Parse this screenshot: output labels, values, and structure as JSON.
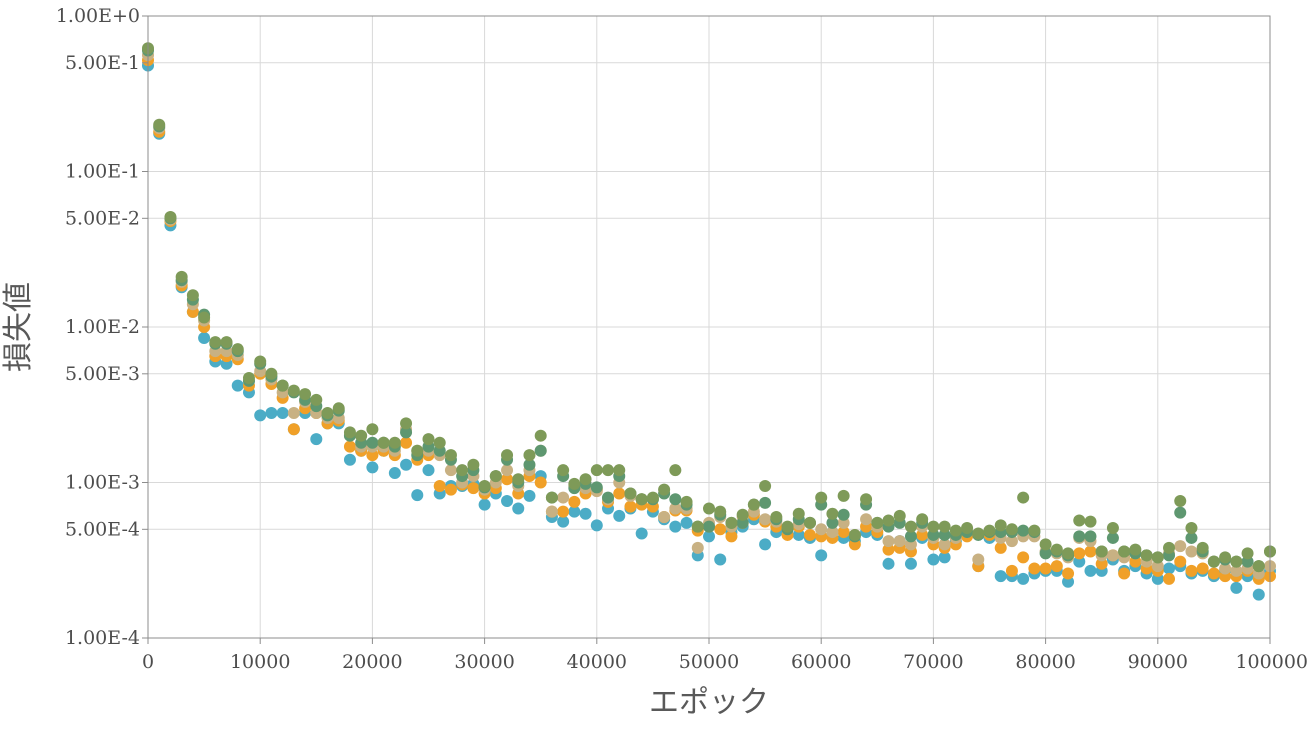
{
  "chart_data": {
    "type": "scatter",
    "title": "",
    "xlabel": "エポック",
    "ylabel": "損失値",
    "xlim": [
      0,
      100000
    ],
    "ylim": [
      0.0001,
      1
    ],
    "yscale": "log",
    "grid": true,
    "legend": "none",
    "x_ticks": [
      "0",
      "10000",
      "20000",
      "30000",
      "40000",
      "50000",
      "60000",
      "70000",
      "80000",
      "90000",
      "100000"
    ],
    "y_ticks": [
      "1.00E-4",
      "5.00E-4",
      "1.00E-3",
      "5.00E-3",
      "1.00E-2",
      "5.00E-2",
      "1.00E-1",
      "5.00E-1",
      "1.00E+0"
    ],
    "x": [
      0,
      1000,
      2000,
      3000,
      4000,
      5000,
      6000,
      7000,
      8000,
      9000,
      10000,
      11000,
      12000,
      13000,
      14000,
      15000,
      16000,
      17000,
      18000,
      19000,
      20000,
      21000,
      22000,
      23000,
      24000,
      25000,
      26000,
      27000,
      28000,
      29000,
      30000,
      31000,
      32000,
      33000,
      34000,
      35000,
      36000,
      37000,
      38000,
      39000,
      40000,
      41000,
      42000,
      43000,
      44000,
      45000,
      46000,
      47000,
      48000,
      49000,
      50000,
      51000,
      52000,
      53000,
      54000,
      55000,
      56000,
      57000,
      58000,
      59000,
      60000,
      61000,
      62000,
      63000,
      64000,
      65000,
      66000,
      67000,
      68000,
      69000,
      70000,
      71000,
      72000,
      73000,
      74000,
      75000,
      76000,
      77000,
      78000,
      79000,
      80000,
      81000,
      82000,
      83000,
      84000,
      85000,
      86000,
      87000,
      88000,
      89000,
      90000,
      91000,
      92000,
      93000,
      94000,
      95000,
      96000,
      97000,
      98000,
      99000,
      100000
    ],
    "series": [
      {
        "color": "#4bacc6",
        "values": [
          0.48,
          0.175,
          0.045,
          0.018,
          0.0125,
          0.0085,
          0.006,
          0.0058,
          0.0042,
          0.0038,
          0.0027,
          0.0028,
          0.0028,
          0.0022,
          0.0028,
          0.0019,
          0.0024,
          0.0024,
          0.0014,
          0.0016,
          0.00125,
          0.0016,
          0.00115,
          0.0013,
          0.00083,
          0.0012,
          0.00085,
          0.00095,
          0.00095,
          0.00098,
          0.00072,
          0.00085,
          0.00076,
          0.00068,
          0.00082,
          0.0011,
          0.0006,
          0.00056,
          0.00065,
          0.00063,
          0.00053,
          0.00068,
          0.00061,
          0.00068,
          0.00047,
          0.00065,
          0.00058,
          0.00052,
          0.00055,
          0.00034,
          0.00045,
          0.00032,
          0.00048,
          0.00052,
          0.00058,
          0.0004,
          0.00048,
          0.0005,
          0.00046,
          0.00044,
          0.00034,
          0.00048,
          0.00044,
          0.00042,
          0.00048,
          0.00046,
          0.0003,
          0.00042,
          0.0003,
          0.00044,
          0.00032,
          0.00033,
          0.00042,
          0.00046,
          0.00029,
          0.00044,
          0.00025,
          0.00025,
          0.00024,
          0.00026,
          0.00027,
          0.00027,
          0.00023,
          0.00031,
          0.00027,
          0.00027,
          0.00032,
          0.00027,
          0.00029,
          0.00026,
          0.00024,
          0.00028,
          0.00029,
          0.00026,
          0.00027,
          0.00025,
          0.00027,
          0.00021,
          0.00025,
          0.00019,
          0.00027
        ]
      },
      {
        "color": "#f0a028",
        "values": [
          0.52,
          0.18,
          0.048,
          0.0185,
          0.0125,
          0.01,
          0.0065,
          0.0065,
          0.0062,
          0.0042,
          0.005,
          0.0043,
          0.0035,
          0.0022,
          0.003,
          0.0028,
          0.0024,
          0.0025,
          0.0017,
          0.0016,
          0.0015,
          0.0016,
          0.0015,
          0.0018,
          0.0014,
          0.0015,
          0.00095,
          0.0009,
          0.00097,
          0.00092,
          0.00085,
          0.00092,
          0.00105,
          0.00085,
          0.0011,
          0.001,
          0.00065,
          0.00065,
          0.00075,
          0.00085,
          0.0009,
          0.00075,
          0.00085,
          0.0007,
          0.00072,
          0.0007,
          0.0006,
          0.00066,
          0.00066,
          0.00049,
          0.00052,
          0.0005,
          0.00045,
          0.00055,
          0.00062,
          0.00056,
          0.00052,
          0.00046,
          0.00052,
          0.00046,
          0.00045,
          0.00044,
          0.00048,
          0.0004,
          0.00052,
          0.00048,
          0.00037,
          0.00038,
          0.00036,
          0.00046,
          0.0004,
          0.00038,
          0.0004,
          0.00045,
          0.00029,
          0.00046,
          0.00038,
          0.00027,
          0.00033,
          0.00028,
          0.00028,
          0.00029,
          0.00026,
          0.00035,
          0.00036,
          0.0003,
          0.00034,
          0.00026,
          0.00031,
          0.00028,
          0.00027,
          0.00024,
          0.00031,
          0.00027,
          0.00028,
          0.00026,
          0.00025,
          0.00025,
          0.00027,
          0.00024,
          0.00025
        ]
      },
      {
        "color": "#c8b183",
        "values": [
          0.56,
          0.19,
          0.049,
          0.0195,
          0.014,
          0.011,
          0.007,
          0.007,
          0.0066,
          0.0045,
          0.0052,
          0.0046,
          0.0038,
          0.0028,
          0.0033,
          0.0028,
          0.0026,
          0.0026,
          0.002,
          0.0017,
          0.0017,
          0.0017,
          0.0016,
          0.0022,
          0.0016,
          0.0016,
          0.0015,
          0.0012,
          0.001,
          0.0011,
          0.0009,
          0.001,
          0.0012,
          0.00095,
          0.0012,
          0.0016,
          0.00065,
          0.0008,
          0.00095,
          0.00092,
          0.00088,
          0.00078,
          0.001,
          0.00082,
          0.00078,
          0.00078,
          0.0006,
          0.00068,
          0.00068,
          0.00038,
          0.00055,
          0.0006,
          0.00052,
          0.0006,
          0.00065,
          0.00058,
          0.00056,
          0.0005,
          0.00054,
          0.00055,
          0.0005,
          0.00048,
          0.00055,
          0.00046,
          0.00058,
          0.00052,
          0.00042,
          0.00042,
          0.0004,
          0.00052,
          0.00044,
          0.0004,
          0.00044,
          0.00048,
          0.00032,
          0.00048,
          0.00044,
          0.00042,
          0.00045,
          0.00045,
          0.00036,
          0.00035,
          0.00033,
          0.00044,
          0.00042,
          0.00034,
          0.00034,
          0.00033,
          0.00035,
          0.00031,
          0.00029,
          0.00035,
          0.00039,
          0.00036,
          0.00035,
          0.00031,
          0.00028,
          0.00027,
          0.00028,
          0.00026,
          0.00029
        ]
      },
      {
        "color": "#5e9770",
        "values": [
          0.6,
          0.195,
          0.05,
          0.02,
          0.015,
          0.012,
          0.0078,
          0.0078,
          0.007,
          0.0045,
          0.0058,
          0.0048,
          0.0042,
          0.0038,
          0.0034,
          0.0031,
          0.0027,
          0.0029,
          0.002,
          0.0018,
          0.0018,
          0.0018,
          0.0017,
          0.0021,
          0.0015,
          0.0017,
          0.0016,
          0.0014,
          0.0011,
          0.0012,
          0.00093,
          0.0011,
          0.0014,
          0.001,
          0.0013,
          0.0016,
          0.0008,
          0.0011,
          0.00092,
          0.00098,
          0.00093,
          0.0008,
          0.0011,
          0.00085,
          0.00078,
          0.00078,
          0.00085,
          0.00078,
          0.00072,
          0.00052,
          0.00052,
          0.00062,
          0.00055,
          0.00055,
          0.00072,
          0.00074,
          0.00058,
          0.0005,
          0.00058,
          0.00055,
          0.00072,
          0.00055,
          0.00062,
          0.00045,
          0.00072,
          0.00055,
          0.00052,
          0.00055,
          0.00045,
          0.00055,
          0.00046,
          0.00046,
          0.00046,
          0.00048,
          0.00046,
          0.00048,
          0.00048,
          0.00048,
          0.00049,
          0.00048,
          0.00035,
          0.00036,
          0.00034,
          0.00045,
          0.00045,
          0.00036,
          0.00044,
          0.00036,
          0.00035,
          0.00034,
          0.00033,
          0.00034,
          0.00064,
          0.00044,
          0.00036,
          0.00031,
          0.00032,
          0.00031,
          0.00031,
          0.00029,
          0.00036
        ]
      },
      {
        "color": "#7e9a58",
        "values": [
          0.62,
          0.2,
          0.051,
          0.021,
          0.016,
          0.0115,
          0.008,
          0.008,
          0.0072,
          0.0047,
          0.006,
          0.005,
          0.0042,
          0.0039,
          0.0037,
          0.0034,
          0.0028,
          0.003,
          0.0021,
          0.002,
          0.0022,
          0.0018,
          0.0018,
          0.0024,
          0.0016,
          0.0019,
          0.0018,
          0.0015,
          0.0012,
          0.0013,
          0.00095,
          0.0011,
          0.0015,
          0.00105,
          0.0015,
          0.002,
          0.0008,
          0.0012,
          0.00098,
          0.00105,
          0.0012,
          0.0012,
          0.0012,
          0.00085,
          0.00078,
          0.0008,
          0.0009,
          0.0012,
          0.00075,
          0.00052,
          0.00068,
          0.00065,
          0.00055,
          0.00062,
          0.00072,
          0.00095,
          0.0006,
          0.00052,
          0.00063,
          0.00055,
          0.0008,
          0.00063,
          0.00082,
          0.00046,
          0.00078,
          0.00055,
          0.00057,
          0.00061,
          0.00052,
          0.00058,
          0.00052,
          0.00052,
          0.00049,
          0.00051,
          0.00047,
          0.00049,
          0.00053,
          0.0005,
          0.0008,
          0.00049,
          0.0004,
          0.00037,
          0.00035,
          0.00057,
          0.00056,
          0.00036,
          0.00051,
          0.00036,
          0.00037,
          0.00034,
          0.00033,
          0.00038,
          0.00076,
          0.00051,
          0.00038,
          0.00031,
          0.00033,
          0.00031,
          0.00035,
          0.00029,
          0.00036
        ]
      }
    ]
  }
}
